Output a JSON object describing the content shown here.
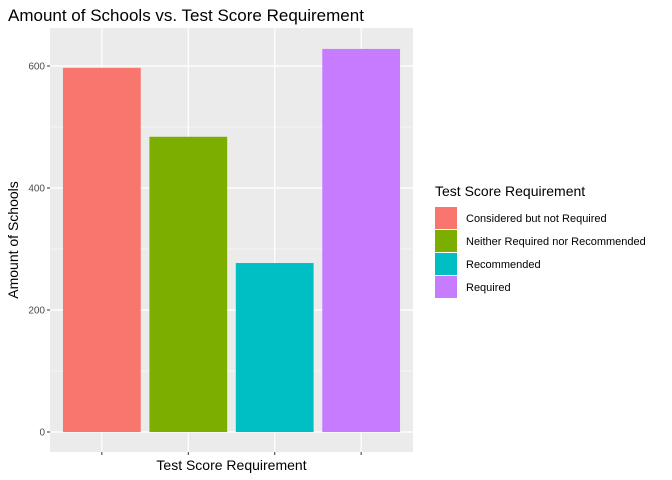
{
  "chart_data": {
    "type": "bar",
    "title": "Amount of Schools vs. Test Score Requirement",
    "xlabel": "Test Score Requirement",
    "ylabel": "Amount of Schools",
    "categories": [
      "Considered but not Required",
      "Neither Required nor Recommended",
      "Recommended",
      "Required"
    ],
    "values": [
      597,
      484,
      277,
      628
    ],
    "colors": [
      "#F8766D",
      "#7CAE00",
      "#00BFC4",
      "#C77CFF"
    ],
    "ylim": [
      0,
      650
    ],
    "yticks": [
      0,
      200,
      400,
      600
    ],
    "x_tick_labels_shown": false,
    "grid": true,
    "legend": {
      "title": "Test Score Requirement",
      "placement": "right",
      "entries": [
        "Considered but not Required",
        "Neither Required nor Recommended",
        "Recommended",
        "Required"
      ]
    }
  }
}
